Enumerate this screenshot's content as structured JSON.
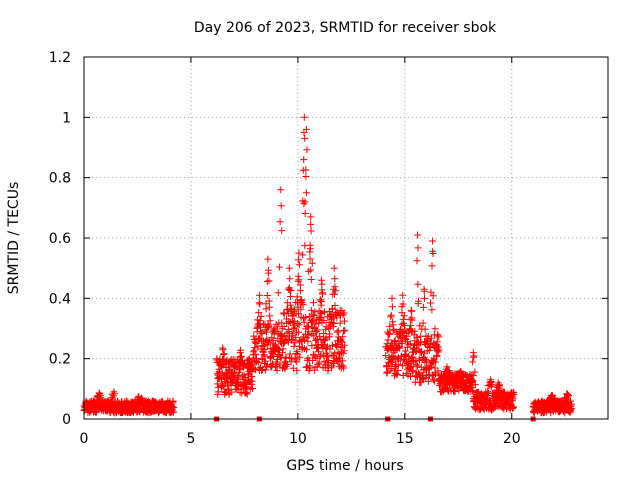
{
  "chart_data": {
    "type": "scatter",
    "title": "Day 206 of 2023, SRMTID for receiver sbok",
    "xlabel": "GPS time / hours",
    "ylabel": "SRMTID / TECUs",
    "xlim": [
      0,
      24.5
    ],
    "ylim": [
      0,
      1.2
    ],
    "grid": true,
    "marker": "plus",
    "color": "#ff0000",
    "x_ticks": [
      0,
      5,
      10,
      15,
      20
    ],
    "x_tick_labels": [
      "0",
      "5",
      "10",
      "15",
      "20"
    ],
    "y_ticks": [
      0,
      0.2,
      0.4,
      0.6,
      0.8,
      1.0,
      1.2
    ],
    "y_tick_labels": [
      "0",
      "0.2",
      "0.4",
      "0.6",
      "0.8",
      "1",
      "1.2"
    ],
    "series": [
      {
        "name": "SRMTID",
        "segments": [
          {
            "x_start": 0.0,
            "x_end": 4.2,
            "baseline": 0.04,
            "spread": 0.02,
            "peaks": [
              [
                0.7,
                0.07
              ],
              [
                1.4,
                0.09
              ],
              [
                2.6,
                0.06
              ]
            ]
          },
          {
            "x_start": 6.2,
            "x_end": 7.9,
            "baseline": 0.14,
            "spread": 0.06,
            "peaks": [
              [
                6.5,
                0.23
              ],
              [
                7.3,
                0.22
              ],
              [
                7.7,
                0.17
              ]
            ]
          },
          {
            "x_start": 7.9,
            "x_end": 9.3,
            "baseline": 0.24,
            "spread": 0.08,
            "peaks": [
              [
                8.2,
                0.41
              ],
              [
                8.6,
                0.53
              ],
              [
                9.2,
                0.76
              ]
            ]
          },
          {
            "x_start": 9.3,
            "x_end": 10.3,
            "baseline": 0.28,
            "spread": 0.12,
            "peaks": [
              [
                9.6,
                0.5
              ],
              [
                10.05,
                0.55
              ],
              [
                10.3,
                1.0
              ]
            ]
          },
          {
            "x_start": 10.3,
            "x_end": 12.2,
            "baseline": 0.26,
            "spread": 0.1,
            "peaks": [
              [
                10.4,
                0.96
              ],
              [
                10.6,
                0.67
              ],
              [
                11.1,
                0.46
              ],
              [
                11.7,
                0.5
              ]
            ]
          },
          {
            "x_start": 14.1,
            "x_end": 15.4,
            "baseline": 0.22,
            "spread": 0.08,
            "peaks": [
              [
                14.4,
                0.4
              ],
              [
                14.9,
                0.41
              ],
              [
                15.3,
                0.36
              ]
            ]
          },
          {
            "x_start": 15.4,
            "x_end": 16.6,
            "baseline": 0.2,
            "spread": 0.08,
            "peaks": [
              [
                15.6,
                0.61
              ],
              [
                15.9,
                0.43
              ],
              [
                16.3,
                0.59
              ]
            ]
          },
          {
            "x_start": 16.6,
            "x_end": 18.2,
            "baseline": 0.12,
            "spread": 0.03,
            "peaks": [
              [
                17.0,
                0.16
              ],
              [
                17.6,
                0.14
              ]
            ]
          },
          {
            "x_start": 18.2,
            "x_end": 20.1,
            "baseline": 0.06,
            "spread": 0.03,
            "peaks": [
              [
                18.2,
                0.22
              ],
              [
                19.0,
                0.13
              ],
              [
                19.4,
                0.11
              ]
            ]
          },
          {
            "x_start": 21.0,
            "x_end": 22.8,
            "baseline": 0.04,
            "spread": 0.02,
            "peaks": [
              [
                21.9,
                0.07
              ],
              [
                22.6,
                0.07
              ]
            ]
          }
        ],
        "zero_points_x": [
          6.2,
          8.2,
          14.2,
          16.2,
          21.0
        ]
      }
    ]
  }
}
